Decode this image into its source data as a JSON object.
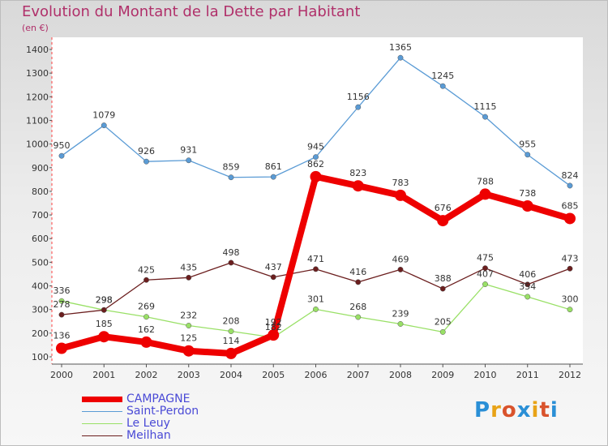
{
  "page": {
    "title": "Evolution du Montant de la Dette par Habitant",
    "unit": "(en €)",
    "logo": "Proxiti"
  },
  "legend": [
    {
      "name": "CAMPAGNE",
      "color": "#ee0000"
    },
    {
      "name": "Saint-Perdon",
      "color": "#5a9bd5"
    },
    {
      "name": "Le Leuy",
      "color": "#99e066"
    },
    {
      "name": "Meilhan",
      "color": "#6b1e1e"
    }
  ],
  "chart_data": {
    "type": "line",
    "title": "Evolution du Montant de la Dette par Habitant",
    "ylabel": "(en €)",
    "xlabel": "",
    "x": [
      "2000",
      "2001",
      "2002",
      "2003",
      "2004",
      "2005",
      "2006",
      "2007",
      "2008",
      "2009",
      "2010",
      "2011",
      "2012"
    ],
    "ylim": [
      100,
      1400
    ],
    "yticks": [
      100,
      200,
      300,
      400,
      500,
      600,
      700,
      800,
      900,
      1000,
      1100,
      1200,
      1300,
      1400
    ],
    "legend_position": "bottom-left",
    "grid": false,
    "series": [
      {
        "name": "CAMPAGNE",
        "color": "#ee0000",
        "values": [
          136,
          185,
          162,
          125,
          114,
          192,
          862,
          823,
          783,
          676,
          788,
          738,
          685
        ]
      },
      {
        "name": "Saint-Perdon",
        "color": "#5a9bd5",
        "values": [
          950,
          1079,
          926,
          931,
          859,
          861,
          945,
          1156,
          1365,
          1245,
          1115,
          955,
          824
        ]
      },
      {
        "name": "Le Leuy",
        "color": "#99e066",
        "values": [
          336,
          298,
          269,
          232,
          208,
          182,
          301,
          268,
          239,
          205,
          407,
          354,
          300
        ]
      },
      {
        "name": "Meilhan",
        "color": "#6b1e1e",
        "values": [
          278,
          298,
          425,
          435,
          498,
          437,
          471,
          416,
          469,
          388,
          475,
          406,
          473
        ]
      }
    ]
  }
}
